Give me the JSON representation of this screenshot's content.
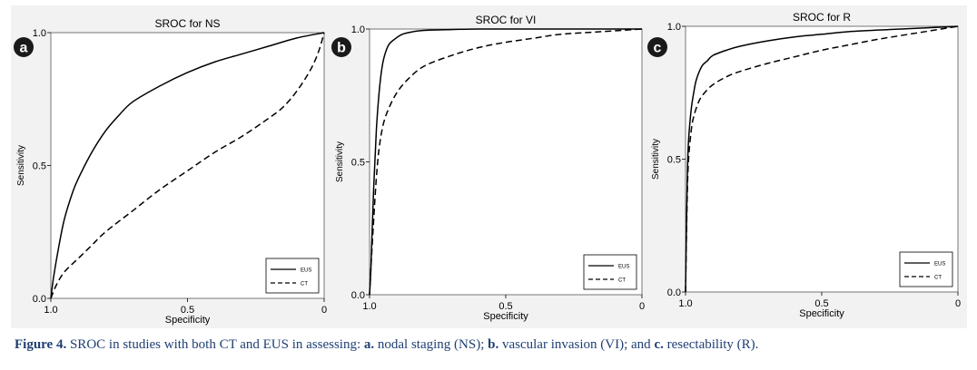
{
  "figure": {
    "caption": {
      "lead": "Figure 4.",
      "intro": "SROC in studies with both CT and EUS in assessing:",
      "item_a_key": "a.",
      "item_a_text": "nodal staging (NS);",
      "item_b_key": "b.",
      "item_b_text": "vascular invasion (VI); and",
      "item_c_key": "c.",
      "item_c_text": "resectability (R)."
    },
    "colors": {
      "panel_bg": "#f2f2f2",
      "plot_bg": "#ffffff",
      "badge_bg": "#1a1a1a",
      "badge_text": "#ffffff",
      "line": "#000000",
      "caption_text": "#1f3f73"
    }
  },
  "chart_data": [
    {
      "type": "line",
      "panel_label": "a",
      "title": "SROC for NS",
      "xlabel": "Specificity",
      "ylabel": "Sensitivity",
      "x_reversed": true,
      "xlim": [
        1.0,
        0.0
      ],
      "ylim": [
        0.0,
        1.0
      ],
      "x_ticks": [
        "1.0",
        "0.5",
        "0"
      ],
      "y_ticks": [
        "0.0",
        "0.5",
        "1.0"
      ],
      "grid": false,
      "legend_position": "bottom-right",
      "legend": [
        "EUS",
        "CT"
      ],
      "series": [
        {
          "name": "EUS",
          "dash": "solid",
          "x": [
            1.0,
            0.99,
            0.97,
            0.95,
            0.92,
            0.9,
            0.85,
            0.8,
            0.75,
            0.7,
            0.6,
            0.5,
            0.4,
            0.3,
            0.2,
            0.1,
            0.0
          ],
          "y": [
            0.0,
            0.08,
            0.2,
            0.3,
            0.4,
            0.45,
            0.55,
            0.63,
            0.69,
            0.74,
            0.8,
            0.85,
            0.89,
            0.92,
            0.95,
            0.98,
            1.0
          ]
        },
        {
          "name": "CT",
          "dash": "dashed",
          "x": [
            1.0,
            0.98,
            0.95,
            0.9,
            0.85,
            0.8,
            0.7,
            0.6,
            0.5,
            0.4,
            0.3,
            0.2,
            0.15,
            0.1,
            0.05,
            0.02,
            0.0
          ],
          "y": [
            0.0,
            0.05,
            0.1,
            0.15,
            0.2,
            0.25,
            0.33,
            0.41,
            0.48,
            0.55,
            0.61,
            0.68,
            0.72,
            0.78,
            0.86,
            0.93,
            1.0
          ]
        }
      ]
    },
    {
      "type": "line",
      "panel_label": "b",
      "title": "SROC for VI",
      "xlabel": "Specificity",
      "ylabel": "Sensitivity",
      "x_reversed": true,
      "xlim": [
        1.0,
        0.0
      ],
      "ylim": [
        0.0,
        1.0
      ],
      "x_ticks": [
        "1.0",
        "0.5",
        "0"
      ],
      "y_ticks": [
        "0.0",
        "0.5",
        "1.0"
      ],
      "grid": false,
      "legend_position": "bottom-right",
      "legend": [
        "EUS",
        "CT"
      ],
      "series": [
        {
          "name": "EUS",
          "dash": "solid",
          "x": [
            1.0,
            0.995,
            0.985,
            0.975,
            0.965,
            0.955,
            0.945,
            0.93,
            0.91,
            0.88,
            0.84,
            0.8,
            0.7,
            0.6,
            0.5,
            0.3,
            0.0
          ],
          "y": [
            0.0,
            0.1,
            0.4,
            0.62,
            0.76,
            0.85,
            0.9,
            0.94,
            0.96,
            0.98,
            0.99,
            0.995,
            0.998,
            1.0,
            1.0,
            1.0,
            1.0
          ]
        },
        {
          "name": "CT",
          "dash": "dashed",
          "x": [
            1.0,
            0.995,
            0.985,
            0.975,
            0.965,
            0.95,
            0.93,
            0.9,
            0.86,
            0.8,
            0.7,
            0.6,
            0.5,
            0.4,
            0.3,
            0.15,
            0.0
          ],
          "y": [
            0.0,
            0.1,
            0.28,
            0.44,
            0.55,
            0.64,
            0.7,
            0.76,
            0.81,
            0.86,
            0.9,
            0.93,
            0.95,
            0.965,
            0.98,
            0.99,
            1.0
          ]
        }
      ]
    },
    {
      "type": "line",
      "panel_label": "c",
      "title": "SROC for R",
      "xlabel": "Specificity",
      "ylabel": "Sensitivity",
      "x_reversed": true,
      "xlim": [
        1.0,
        0.0
      ],
      "ylim": [
        0.0,
        1.0
      ],
      "x_ticks": [
        "1.0",
        "0.5",
        "0"
      ],
      "y_ticks": [
        "0.0",
        "0.5",
        "1.0"
      ],
      "grid": false,
      "legend_position": "bottom-right",
      "legend": [
        "EUS",
        "CT"
      ],
      "series": [
        {
          "name": "EUS",
          "dash": "solid",
          "x": [
            1.0,
            0.995,
            0.99,
            0.98,
            0.97,
            0.96,
            0.94,
            0.92,
            0.9,
            0.85,
            0.8,
            0.7,
            0.6,
            0.5,
            0.4,
            0.2,
            0.0
          ],
          "y": [
            0.0,
            0.35,
            0.55,
            0.68,
            0.75,
            0.8,
            0.85,
            0.87,
            0.89,
            0.91,
            0.925,
            0.945,
            0.96,
            0.97,
            0.98,
            0.99,
            1.0
          ]
        },
        {
          "name": "CT",
          "dash": "dashed",
          "x": [
            1.0,
            0.995,
            0.99,
            0.98,
            0.97,
            0.95,
            0.93,
            0.9,
            0.85,
            0.8,
            0.7,
            0.6,
            0.5,
            0.4,
            0.3,
            0.15,
            0.0
          ],
          "y": [
            0.0,
            0.3,
            0.48,
            0.6,
            0.66,
            0.72,
            0.75,
            0.78,
            0.81,
            0.83,
            0.86,
            0.885,
            0.91,
            0.93,
            0.95,
            0.975,
            1.0
          ]
        }
      ]
    }
  ]
}
